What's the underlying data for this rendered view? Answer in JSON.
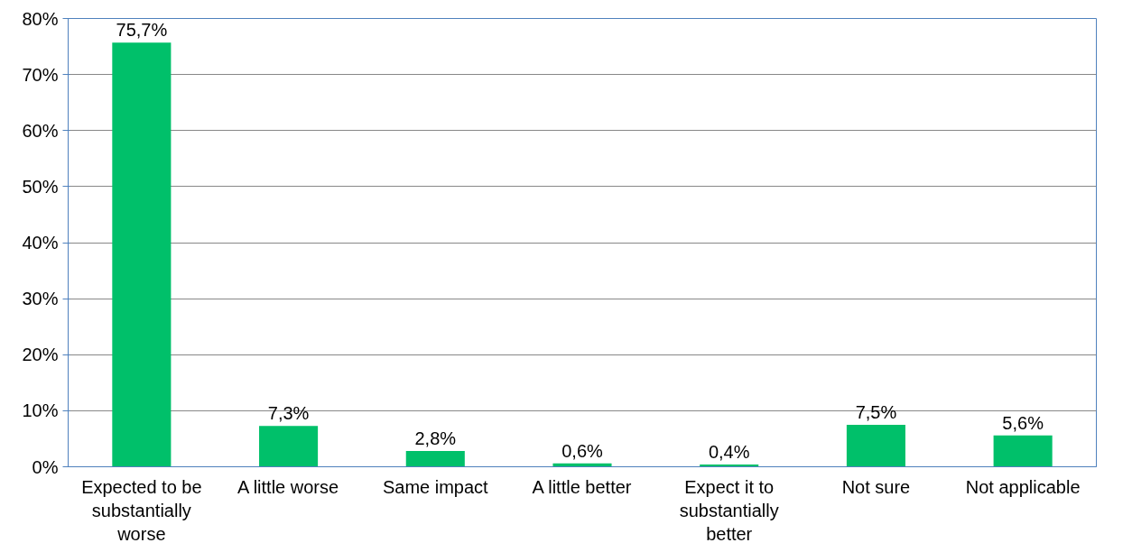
{
  "chart_data": {
    "type": "bar",
    "categories": [
      "Expected to be substantially worse",
      "A little worse",
      "Same impact",
      "A little better",
      "Expect it to substantially better",
      "Not sure",
      "Not applicable"
    ],
    "values": [
      75.7,
      7.3,
      2.8,
      0.6,
      0.4,
      7.5,
      5.6
    ],
    "value_labels": [
      "75,7%",
      "7,3%",
      "2,8%",
      "0,6%",
      "0,4%",
      "7,5%",
      "5,6%"
    ],
    "color": "#00c06a",
    "ylim": [
      0,
      80
    ],
    "yticks": [
      {
        "value": 0,
        "label": "0%"
      },
      {
        "value": 10,
        "label": "10%"
      },
      {
        "value": 20,
        "label": "20%"
      },
      {
        "value": 30,
        "label": "30%"
      },
      {
        "value": 40,
        "label": "40%"
      },
      {
        "value": 50,
        "label": "50%"
      },
      {
        "value": 60,
        "label": "60%"
      },
      {
        "value": 70,
        "label": "70%"
      },
      {
        "value": 80,
        "label": "80%"
      }
    ],
    "grid": "y"
  }
}
